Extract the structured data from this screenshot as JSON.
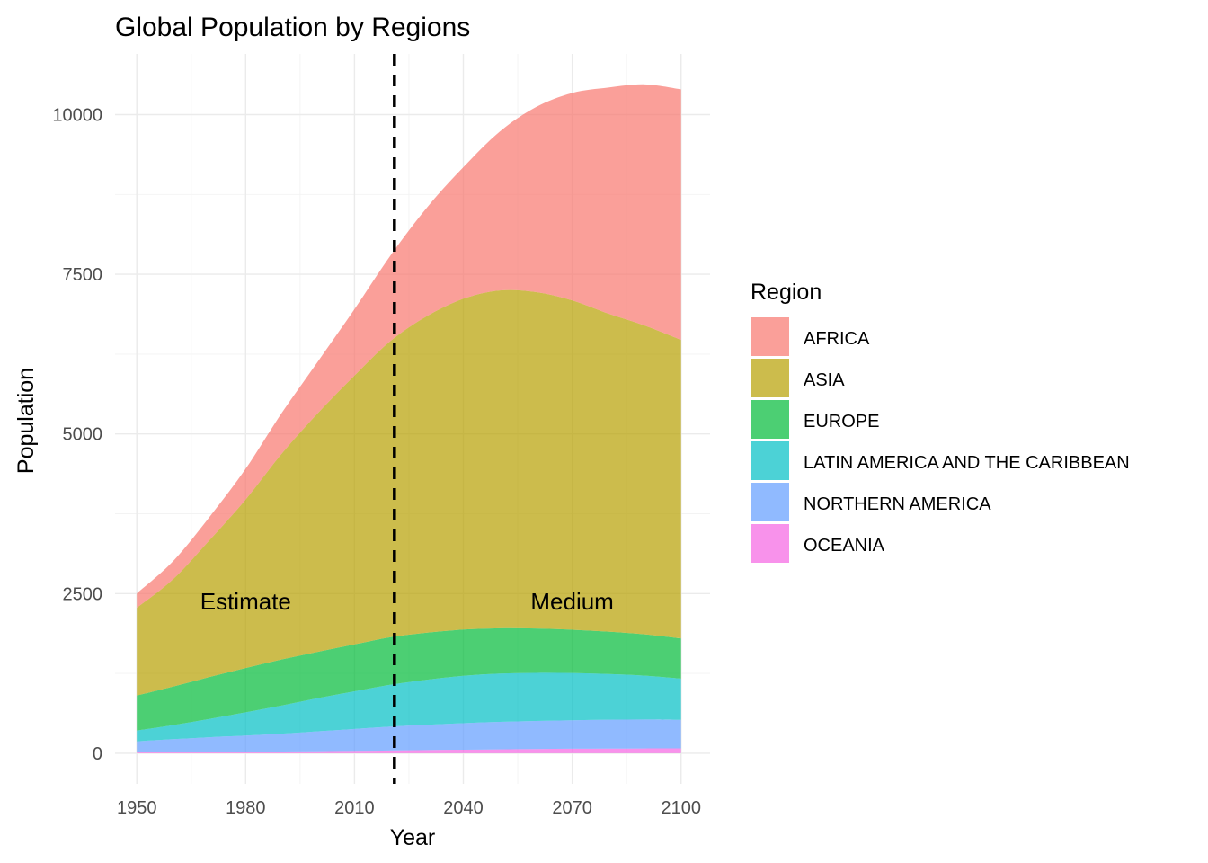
{
  "chart_data": {
    "type": "area",
    "stacked": true,
    "title": "Global Population by Regions",
    "xlabel": "Year",
    "ylabel": "Population",
    "xlim": [
      1944,
      2108
    ],
    "ylim": [
      -480,
      10950
    ],
    "x_ticks": [
      1950,
      1980,
      2010,
      2040,
      2070,
      2100
    ],
    "y_ticks": [
      0,
      2500,
      5000,
      7500,
      10000
    ],
    "grid": true,
    "legend": {
      "title": "Region",
      "position": "right"
    },
    "x": [
      1950,
      1960,
      1970,
      1980,
      1990,
      2000,
      2010,
      2020,
      2030,
      2040,
      2050,
      2060,
      2070,
      2080,
      2090,
      2100
    ],
    "series": [
      {
        "name": "OCEANIA",
        "color": "#F564E3",
        "values": [
          13,
          16,
          20,
          23,
          27,
          31,
          37,
          43,
          49,
          55,
          61,
          66,
          70,
          73,
          75,
          75
        ]
      },
      {
        "name": "NORTHERN AMERICA",
        "color": "#619CFF",
        "values": [
          173,
          204,
          231,
          254,
          280,
          312,
          343,
          375,
          397,
          416,
          430,
          439,
          446,
          451,
          454,
          448
        ]
      },
      {
        "name": "LATIN AMERICA AND THE CARIBBEAN",
        "color": "#00BFC4",
        "values": [
          169,
          220,
          286,
          363,
          441,
          521,
          590,
          655,
          705,
          741,
          756,
          754,
          740,
          716,
          686,
          646
        ]
      },
      {
        "name": "EUROPE",
        "color": "#00BA38",
        "values": [
          549,
          604,
          657,
          694,
          721,
          726,
          735,
          745,
          738,
          725,
          710,
          694,
          679,
          665,
          647,
          629
        ]
      },
      {
        "name": "ASIA",
        "color": "#B79F00",
        "values": [
          1372,
          1681,
          2141,
          2640,
          3226,
          3741,
          4210,
          4641,
          4958,
          5180,
          5290,
          5268,
          5156,
          4978,
          4835,
          4674
        ]
      },
      {
        "name": "AFRICA",
        "color": "#F8766D",
        "values": [
          227,
          283,
          363,
          481,
          638,
          811,
          1039,
          1341,
          1700,
          2060,
          2486,
          2897,
          3248,
          3541,
          3777,
          3924
        ]
      }
    ],
    "vline": {
      "x": 2021,
      "style": "dashed",
      "color": "#000000"
    },
    "annotations": [
      {
        "text": "Estimate",
        "x": 1980,
        "y": 2250
      },
      {
        "text": "Medium",
        "x": 2070,
        "y": 2250
      }
    ]
  }
}
